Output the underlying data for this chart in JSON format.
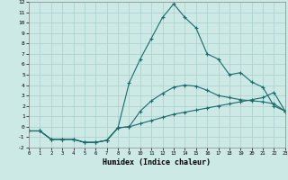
{
  "xlabel": "Humidex (Indice chaleur)",
  "xlim": [
    0,
    23
  ],
  "ylim": [
    -2,
    12
  ],
  "xticks": [
    0,
    1,
    2,
    3,
    4,
    5,
    6,
    7,
    8,
    9,
    10,
    11,
    12,
    13,
    14,
    15,
    16,
    17,
    18,
    19,
    20,
    21,
    22,
    23
  ],
  "yticks": [
    -2,
    -1,
    0,
    1,
    2,
    3,
    4,
    5,
    6,
    7,
    8,
    9,
    10,
    11,
    12
  ],
  "background_color": "#cce9e5",
  "grid_color": "#aacfcb",
  "line_color": "#1a6b6b",
  "line1_x": [
    0,
    1,
    2,
    3,
    4,
    5,
    6,
    7,
    8,
    9,
    10,
    11,
    12,
    13,
    14,
    15,
    16,
    17,
    18,
    19,
    20,
    21,
    22,
    23
  ],
  "line1_y": [
    -0.4,
    -0.4,
    -1.2,
    -1.2,
    -1.2,
    -1.5,
    -1.5,
    -1.3,
    -0.1,
    0.0,
    0.3,
    0.6,
    0.9,
    1.2,
    1.4,
    1.6,
    1.8,
    2.0,
    2.2,
    2.4,
    2.6,
    2.8,
    3.3,
    1.5
  ],
  "line2_x": [
    0,
    1,
    2,
    3,
    4,
    5,
    6,
    7,
    8,
    9,
    10,
    11,
    12,
    13,
    14,
    15,
    16,
    17,
    18,
    19,
    20,
    21,
    22,
    23
  ],
  "line2_y": [
    -0.4,
    -0.4,
    -1.2,
    -1.2,
    -1.2,
    -1.5,
    -1.5,
    -1.3,
    -0.1,
    4.2,
    6.5,
    8.5,
    10.5,
    11.8,
    10.5,
    9.5,
    7.0,
    6.5,
    5.0,
    5.2,
    4.3,
    3.8,
    2.0,
    1.5
  ],
  "line3_x": [
    0,
    1,
    2,
    3,
    4,
    5,
    6,
    7,
    8,
    9,
    10,
    11,
    12,
    13,
    14,
    15,
    16,
    17,
    18,
    19,
    20,
    21,
    22,
    23
  ],
  "line3_y": [
    -0.4,
    -0.4,
    -1.2,
    -1.2,
    -1.2,
    -1.5,
    -1.5,
    -1.3,
    -0.1,
    0.0,
    1.5,
    2.5,
    3.2,
    3.8,
    4.0,
    3.9,
    3.5,
    3.0,
    2.8,
    2.6,
    2.5,
    2.4,
    2.2,
    1.5
  ]
}
